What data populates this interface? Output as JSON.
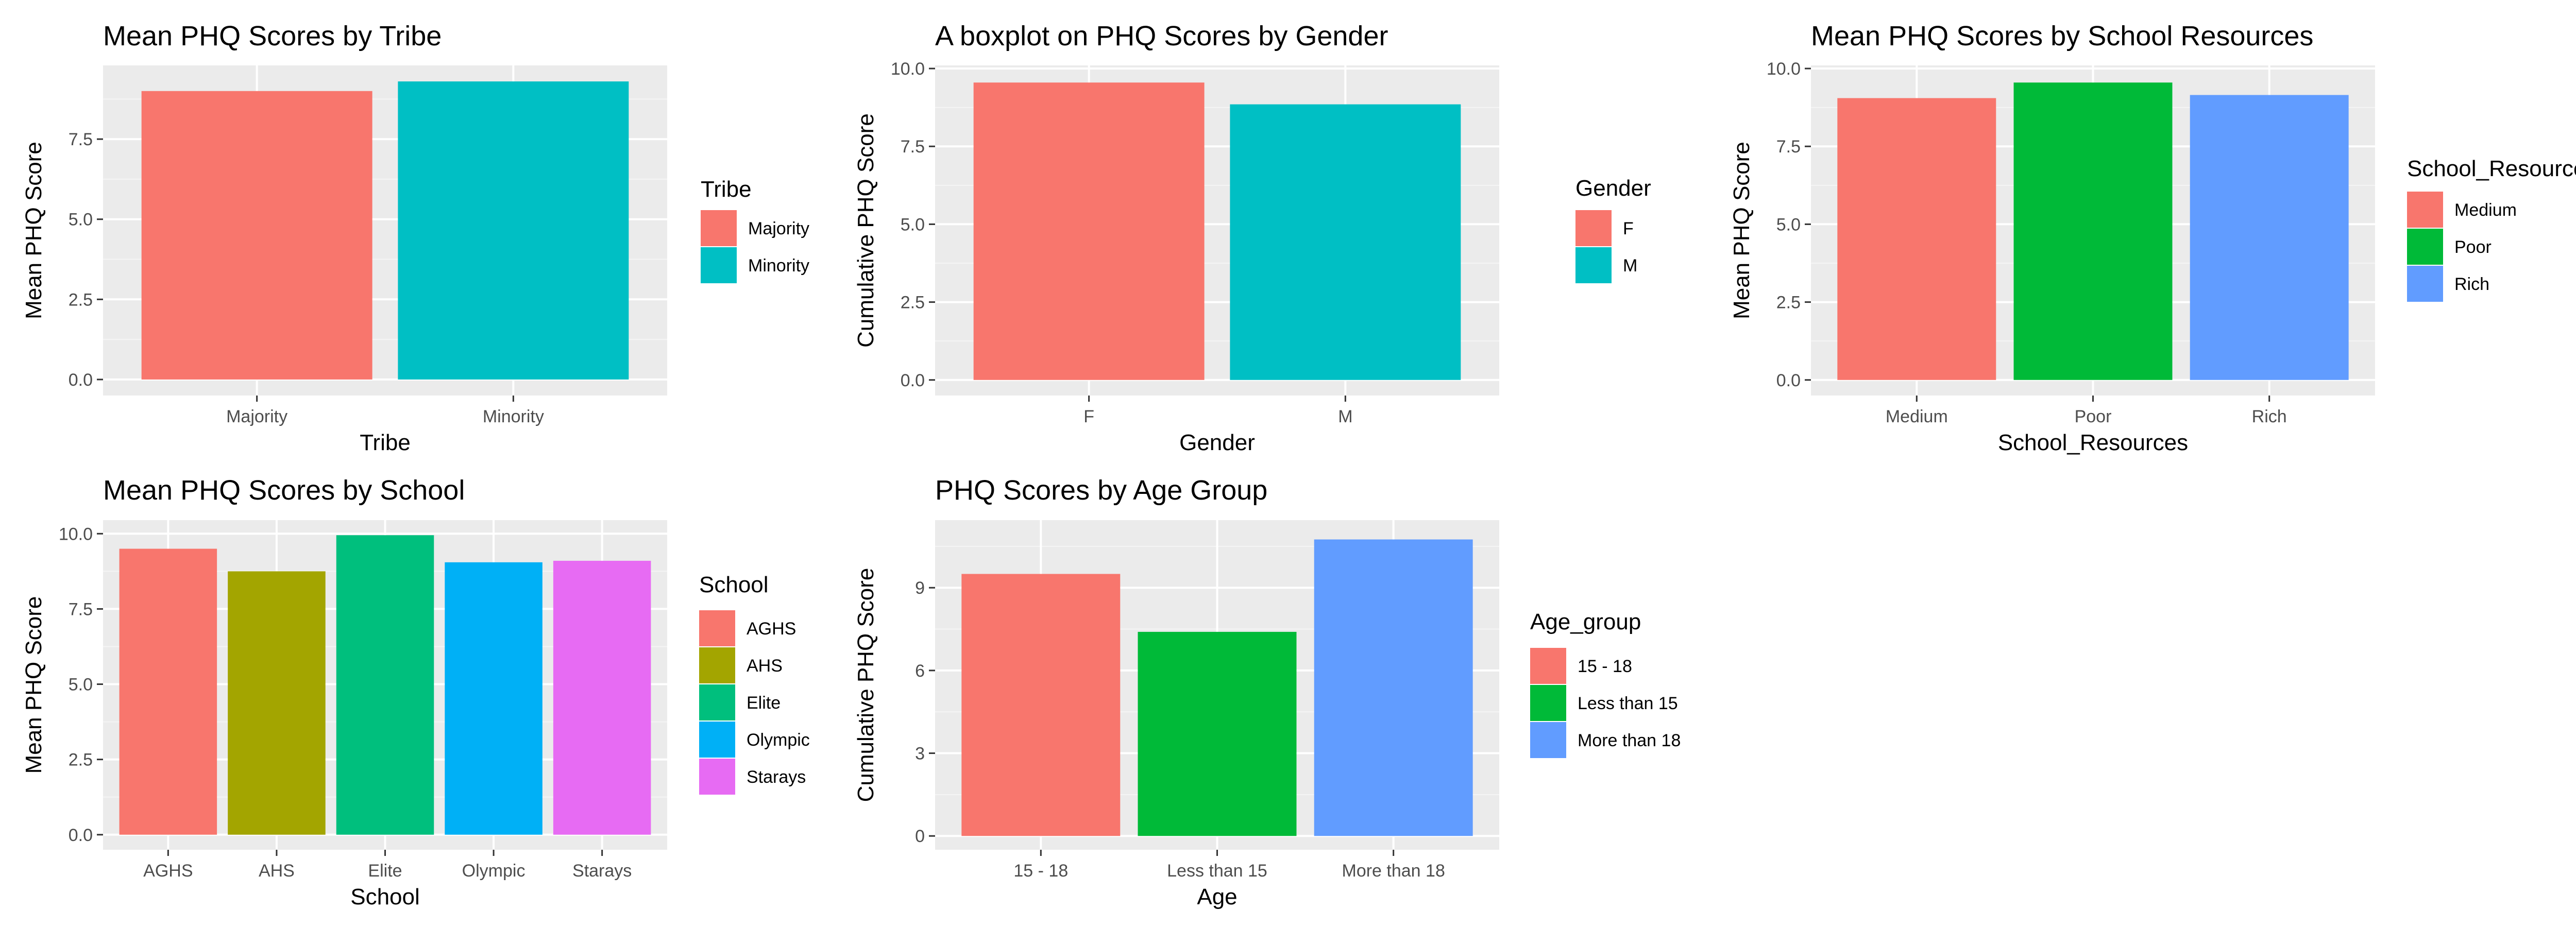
{
  "chart_data": [
    {
      "type": "bar",
      "title": "Mean PHQ Scores by Tribe",
      "xlabel": "Tribe",
      "ylabel": "Mean PHQ Score",
      "categories": [
        "Majority",
        "Minority"
      ],
      "values": [
        9.0,
        9.3
      ],
      "colors": [
        "#F8766D",
        "#00BFC4"
      ],
      "ylim": [
        -0.5,
        9.8
      ],
      "yticks": [
        0,
        2.5,
        5,
        7.5
      ],
      "ytick_labels": [
        "0.0",
        "2.5",
        "5.0",
        "7.5"
      ],
      "legend": {
        "title": "Tribe",
        "labels": [
          "Majority",
          "Minority"
        ],
        "position": "right"
      },
      "grid": true
    },
    {
      "type": "bar",
      "title": "A boxplot on PHQ Scores by Gender",
      "xlabel": "Gender",
      "ylabel": "Cumulative PHQ Score",
      "categories": [
        "F",
        "M"
      ],
      "values": [
        9.55,
        8.85
      ],
      "colors": [
        "#F8766D",
        "#00BFC4"
      ],
      "ylim": [
        -0.5,
        10.1
      ],
      "yticks": [
        0,
        2.5,
        5,
        7.5,
        10
      ],
      "ytick_labels": [
        "0.0",
        "2.5",
        "5.0",
        "7.5",
        "10.0"
      ],
      "legend": {
        "title": "Gender",
        "labels": [
          "F",
          "M"
        ],
        "position": "right"
      },
      "grid": true
    },
    {
      "type": "bar",
      "title": "Mean PHQ Scores by School Resources",
      "xlabel": "School_Resources",
      "ylabel": "Mean PHQ Score",
      "categories": [
        "Medium",
        "Poor",
        "Rich"
      ],
      "values": [
        9.05,
        9.55,
        9.15
      ],
      "colors": [
        "#F8766D",
        "#00BA38",
        "#619CFF"
      ],
      "ylim": [
        -0.5,
        10.1
      ],
      "yticks": [
        0,
        2.5,
        5,
        7.5,
        10
      ],
      "ytick_labels": [
        "0.0",
        "2.5",
        "5.0",
        "7.5",
        "10.0"
      ],
      "legend": {
        "title": "School_Resources",
        "labels": [
          "Medium",
          "Poor",
          "Rich"
        ],
        "position": "right"
      },
      "grid": true
    },
    {
      "type": "bar",
      "title": "Mean PHQ Scores by School",
      "xlabel": "School",
      "ylabel": "Mean PHQ Score",
      "categories": [
        "AGHS",
        "AHS",
        "Elite",
        "Olympic",
        "Starays"
      ],
      "values": [
        9.5,
        8.75,
        9.95,
        9.05,
        9.1
      ],
      "colors": [
        "#F8766D",
        "#A3A500",
        "#00BF7D",
        "#00B0F6",
        "#E76BF3"
      ],
      "ylim": [
        -0.5,
        10.45
      ],
      "yticks": [
        0,
        2.5,
        5,
        7.5,
        10
      ],
      "ytick_labels": [
        "0.0",
        "2.5",
        "5.0",
        "7.5",
        "10.0"
      ],
      "legend": {
        "title": "School",
        "labels": [
          "AGHS",
          "AHS",
          "Elite",
          "Olympic",
          "Starays"
        ],
        "position": "right"
      },
      "grid": true
    },
    {
      "type": "bar",
      "title": "PHQ Scores by Age Group",
      "xlabel": "Age",
      "ylabel": "Cumulative PHQ Score",
      "categories": [
        "15 - 18",
        "Less than 15",
        "More than 18"
      ],
      "values": [
        9.5,
        7.4,
        10.75
      ],
      "colors": [
        "#F8766D",
        "#00BA38",
        "#619CFF"
      ],
      "ylim": [
        -0.5,
        11.45
      ],
      "yticks": [
        0,
        3,
        6,
        9
      ],
      "ytick_labels": [
        "0",
        "3",
        "6",
        "9"
      ],
      "legend": {
        "title": "Age_group",
        "labels": [
          "15 - 18",
          "Less than 15",
          "More than 18"
        ],
        "position": "right"
      },
      "grid": true
    }
  ]
}
